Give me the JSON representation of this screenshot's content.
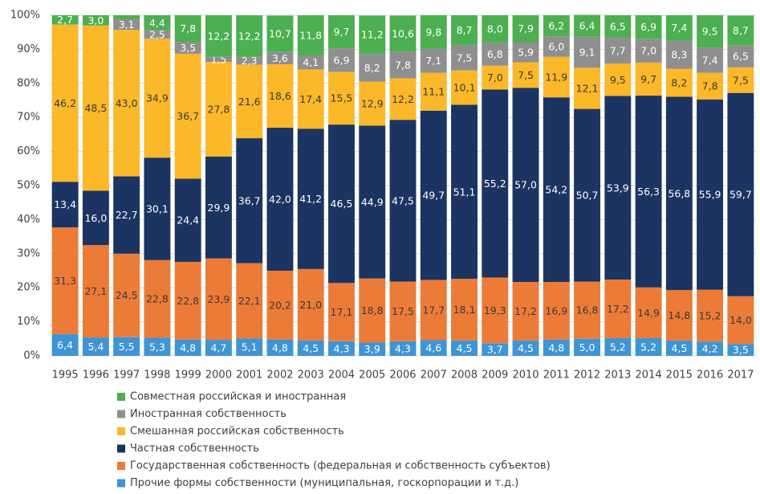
{
  "chart_data": {
    "type": "stacked_bar",
    "categories": [
      "1995",
      "1996",
      "1997",
      "1998",
      "1999",
      "2000",
      "2001",
      "2002",
      "2003",
      "2004",
      "2005",
      "2006",
      "2007",
      "2008",
      "2009",
      "2010",
      "2011",
      "2012",
      "2013",
      "2014",
      "2015",
      "2016",
      "2017"
    ],
    "ylim": [
      0,
      100
    ],
    "yticks": [
      {
        "value": 0,
        "label": "0%"
      },
      {
        "value": 10,
        "label": "10%"
      },
      {
        "value": 20,
        "label": "20%"
      },
      {
        "value": 30,
        "label": "30%"
      },
      {
        "value": 40,
        "label": "40%"
      },
      {
        "value": 50,
        "label": "50%"
      },
      {
        "value": 60,
        "label": "60%"
      },
      {
        "value": 70,
        "label": "70%"
      },
      {
        "value": 80,
        "label": "80%"
      },
      {
        "value": 90,
        "label": "90%"
      },
      {
        "value": 100,
        "label": "100%"
      }
    ],
    "grid": true,
    "legend": "bottom",
    "series": [
      {
        "name": "Прочие формы собственности (муниципальная, госкорпорации и т.д.)",
        "color": "#3f94d4",
        "values": [
          6.4,
          5.4,
          5.5,
          5.3,
          4.8,
          4.7,
          5.1,
          4.8,
          4.5,
          4.3,
          3.9,
          4.3,
          4.6,
          4.5,
          3.7,
          4.5,
          4.8,
          5.0,
          5.2,
          5.2,
          4.5,
          4.2,
          3.5
        ],
        "value_labels": [
          "6,4",
          "5,4",
          "5,5",
          "5,3",
          "4,8",
          "4,7",
          "5,1",
          "4,8",
          "4,5",
          "4,3",
          "3,9",
          "4,3",
          "4,6",
          "4,5",
          "3,7",
          "4,5",
          "4,8",
          "5,0",
          "5,2",
          "5,2",
          "4,5",
          "4,2",
          "3,5"
        ]
      },
      {
        "name": "Государственная собственность (федеральная и собственность субъектов)",
        "color": "#ec7b37",
        "values": [
          31.3,
          27.1,
          24.5,
          22.8,
          22.8,
          23.9,
          22.1,
          20.2,
          21.0,
          17.1,
          18.8,
          17.5,
          17.7,
          18.1,
          19.3,
          17.2,
          16.9,
          16.8,
          17.2,
          14.9,
          14.8,
          15.2,
          14.0
        ],
        "value_labels": [
          "31,3",
          "27,1",
          "24,5",
          "22,8",
          "22,8",
          "23,9",
          "22,1",
          "20,2",
          "21,0",
          "17,1",
          "18,8",
          "17,5",
          "17,7",
          "18,1",
          "19,3",
          "17,2",
          "16,9",
          "16,8",
          "17,2",
          "14,9",
          "14,8",
          "15,2",
          "14,0"
        ]
      },
      {
        "name": "Частная собственность",
        "color": "#1c3461",
        "values": [
          13.4,
          16.0,
          22.7,
          30.1,
          24.4,
          29.9,
          36.7,
          42.0,
          41.2,
          46.5,
          44.9,
          47.5,
          49.7,
          51.1,
          55.2,
          57.0,
          54.2,
          50.7,
          53.9,
          56.3,
          56.8,
          55.9,
          59.7
        ],
        "value_labels": [
          "13,4",
          "16,0",
          "22,7",
          "30,1",
          "24,4",
          "29,9",
          "36,7",
          "42,0",
          "41,2",
          "46,5",
          "44,9",
          "47,5",
          "49,7",
          "51,1",
          "55,2",
          "57,0",
          "54,2",
          "50,7",
          "53,9",
          "56,3",
          "56,8",
          "55,9",
          "59,7"
        ]
      },
      {
        "name": "Смешанная российская собственность",
        "color": "#fbb829",
        "values": [
          46.2,
          48.5,
          43.0,
          34.9,
          36.7,
          27.8,
          21.6,
          18.6,
          17.4,
          15.5,
          12.9,
          12.2,
          11.1,
          10.1,
          7.0,
          7.5,
          11.9,
          12.1,
          9.5,
          9.7,
          8.2,
          7.8,
          7.5
        ],
        "value_labels": [
          "46,2",
          "48,5",
          "43,0",
          "34,9",
          "36,7",
          "27,8",
          "21,6",
          "18,6",
          "17,4",
          "15,5",
          "12,9",
          "12,2",
          "11,1",
          "10,1",
          "7,0",
          "7,5",
          "11,9",
          "12,1",
          "9,5",
          "9,7",
          "8,2",
          "7,8",
          "7,5"
        ]
      },
      {
        "name": "Иностранная собственность",
        "color": "#8f8f8f",
        "values": [
          null,
          null,
          3.1,
          2.5,
          3.5,
          1.5,
          2.3,
          3.6,
          4.1,
          6.9,
          8.2,
          7.8,
          7.1,
          7.5,
          6.8,
          5.9,
          6.0,
          9.1,
          7.7,
          7.0,
          8.3,
          7.4,
          6.5
        ],
        "value_labels": [
          null,
          null,
          "3,1",
          "2,5",
          "3,5",
          "1,5",
          "2,3",
          "3,6",
          "4,1",
          "6,9",
          "8,2",
          "7,8",
          "7,1",
          "7,5",
          "6,8",
          "5,9",
          "6,0",
          "9,1",
          "7,7",
          "7,0",
          "8,3",
          "7,4",
          "6,5"
        ]
      },
      {
        "name": "Совместная российская и иностранная",
        "color": "#4caf50",
        "values": [
          2.7,
          3.0,
          1.2,
          4.4,
          7.8,
          12.2,
          12.2,
          10.7,
          11.8,
          9.7,
          11.2,
          10.6,
          9.8,
          8.7,
          8.0,
          7.9,
          6.2,
          6.4,
          6.5,
          6.9,
          7.4,
          9.5,
          8.7
        ],
        "value_labels": [
          "2,7",
          "3,0",
          null,
          "4,4",
          "7,8",
          "12,2",
          "12,2",
          "10,7",
          "11,8",
          "9,7",
          "11,2",
          "10,6",
          "9,8",
          "8,7",
          "8,0",
          "7,9",
          "6,2",
          "6,4",
          "6,5",
          "6,9",
          "7,4",
          "9,5",
          "8,7"
        ]
      }
    ]
  }
}
